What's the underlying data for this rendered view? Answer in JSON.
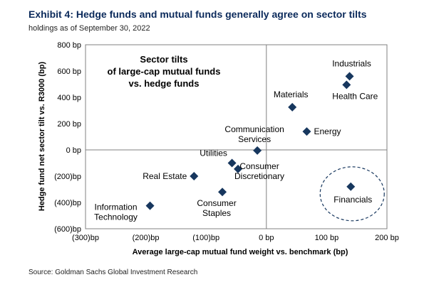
{
  "header": {
    "title": "Exhibit 4: Hedge funds and mutual funds generally agree on sector tilts",
    "subtitle": "holdings as of September 30, 2022"
  },
  "footer": {
    "source": "Source: Goldman Sachs Global Investment Research"
  },
  "chart_data": {
    "type": "scatter",
    "xlabel": "Average large-cap mutual fund weight vs. benchmark (bp)",
    "ylabel": "Hedge fund net sector tilt vs. R3000 (bp)",
    "xlim": [
      -300,
      200
    ],
    "ylim": [
      -600,
      800
    ],
    "x_ticks": [
      -300,
      -200,
      -100,
      0,
      100,
      200
    ],
    "x_tick_labels": [
      "(300)bp",
      "(200)bp",
      "(100)bp",
      "0 bp",
      "100 bp",
      "200 bp"
    ],
    "y_ticks": [
      800,
      600,
      400,
      200,
      0,
      -200,
      -400,
      -600
    ],
    "y_tick_labels": [
      "800 bp",
      "600 bp",
      "400 bp",
      "200 bp",
      "0 bp",
      "(200)bp",
      "(400)bp",
      "(600)bp"
    ],
    "annotation": [
      "Sector tilts",
      "of large-cap mutual funds",
      "vs. hedge funds"
    ],
    "marker": "diamond",
    "marker_color": "#17375e",
    "points": [
      {
        "label": [
          "Industrials"
        ],
        "x": 138,
        "y": 560
      },
      {
        "label": [
          "Health Care"
        ],
        "x": 133,
        "y": 495
      },
      {
        "label": [
          "Materials"
        ],
        "x": 43,
        "y": 325
      },
      {
        "label": [
          "Energy"
        ],
        "x": 67,
        "y": 140
      },
      {
        "label": [
          "Communication",
          "Services"
        ],
        "x": -15,
        "y": -5
      },
      {
        "label": [
          "Utilities"
        ],
        "x": -57,
        "y": -100
      },
      {
        "label": [
          "Consumer",
          "Discretionary"
        ],
        "x": -47,
        "y": -145
      },
      {
        "label": [
          "Real Estate"
        ],
        "x": -120,
        "y": -200
      },
      {
        "label": [
          "Consumer",
          "Staples"
        ],
        "x": -73,
        "y": -320
      },
      {
        "label": [
          "Information",
          "Technology"
        ],
        "x": -193,
        "y": -425
      },
      {
        "label": [
          "Financials"
        ],
        "x": 140,
        "y": -280
      }
    ],
    "highlight": "Financials"
  }
}
